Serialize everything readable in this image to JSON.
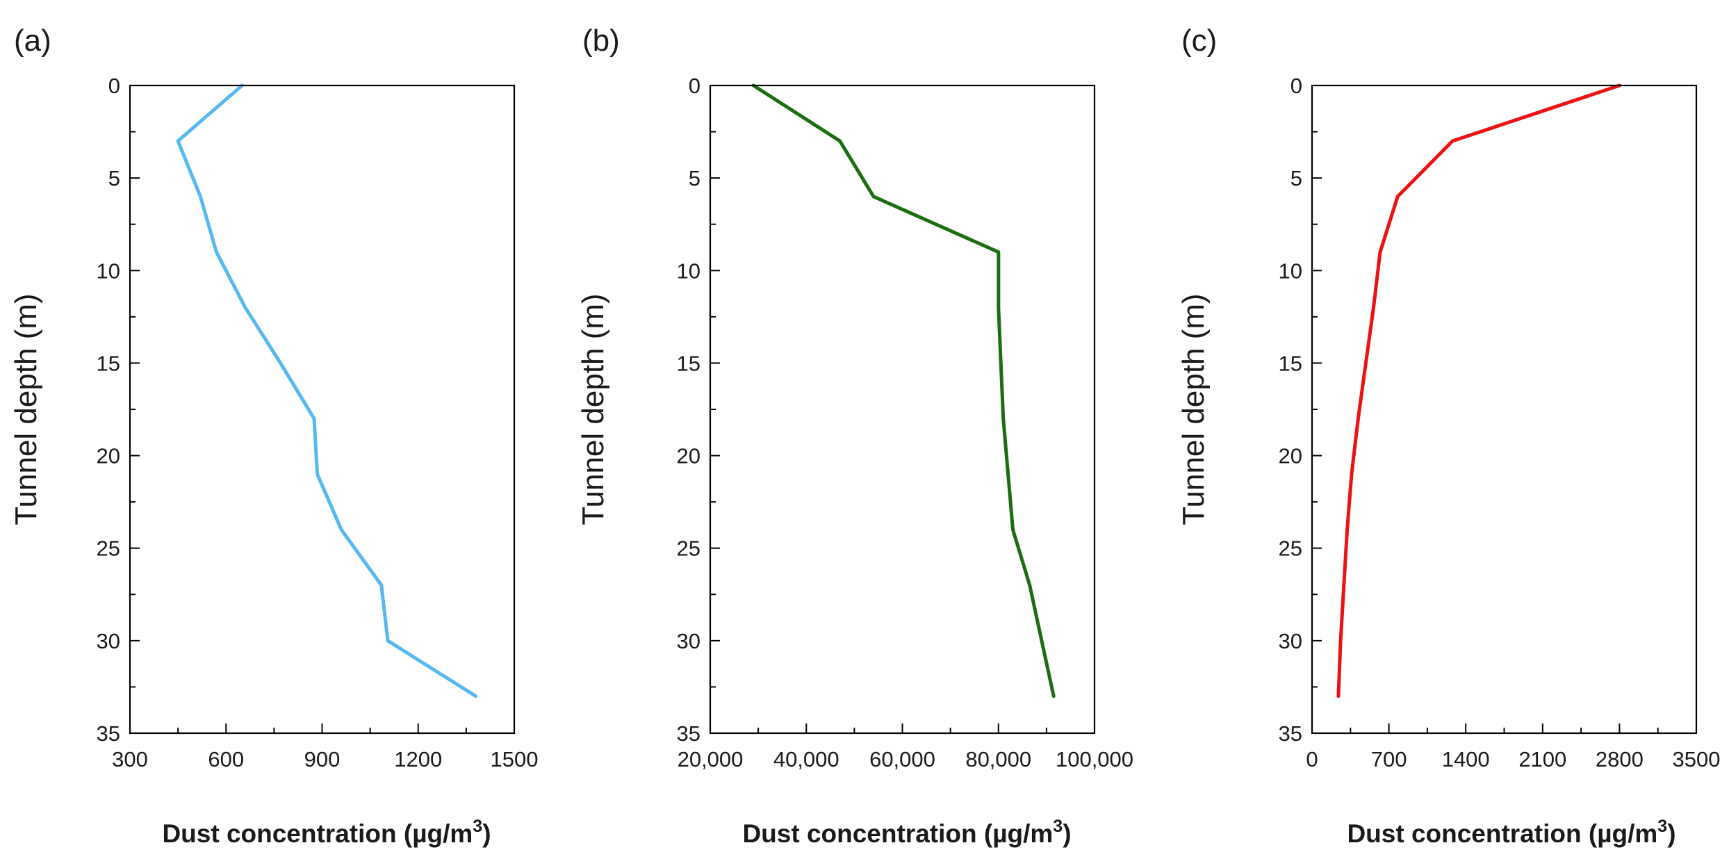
{
  "figure": {
    "background": "#ffffff",
    "axis_color": "#000000"
  },
  "chart_data": [
    {
      "type": "line",
      "panel_label": "(a)",
      "title": "",
      "xlabel_text": "Dust concentration (µg/m",
      "xlabel_sup": "3",
      "xlabel_close": ")",
      "ylabel": "Tunnel depth (m)",
      "xlim": [
        300,
        1500
      ],
      "ylim": [
        35,
        0
      ],
      "y_inverted": true,
      "x_ticks": [
        300,
        600,
        900,
        1200,
        1500
      ],
      "x_tick_labels": [
        "300",
        "600",
        "900",
        "1200",
        "1500"
      ],
      "y_ticks": [
        0,
        5,
        10,
        15,
        20,
        25,
        30,
        35
      ],
      "y_tick_labels": [
        "0",
        "5",
        "10",
        "15",
        "20",
        "25",
        "30",
        "35"
      ],
      "grid": false,
      "series": [
        {
          "name": "Dust concentration",
          "color": "#56b8ee",
          "x": [
            650,
            450,
            520,
            570,
            660,
            770,
            875,
            885,
            960,
            1085,
            1105,
            1380
          ],
          "y": [
            0,
            3,
            6,
            9,
            12,
            15,
            18,
            21,
            24,
            27,
            30,
            33
          ]
        }
      ]
    },
    {
      "type": "line",
      "panel_label": "(b)",
      "title": "",
      "xlabel_text": "Dust concentration (µg/m",
      "xlabel_sup": "3",
      "xlabel_close": ")",
      "ylabel": "Tunnel depth (m)",
      "xlim": [
        20000,
        100000
      ],
      "ylim": [
        35,
        0
      ],
      "y_inverted": true,
      "x_ticks": [
        20000,
        40000,
        60000,
        80000,
        100000
      ],
      "x_tick_labels": [
        "20,000",
        "40,000",
        "60,000",
        "80,000",
        "100,000"
      ],
      "y_ticks": [
        0,
        5,
        10,
        15,
        20,
        25,
        30,
        35
      ],
      "y_tick_labels": [
        "0",
        "5",
        "10",
        "15",
        "20",
        "25",
        "30",
        "35"
      ],
      "grid": false,
      "series": [
        {
          "name": "Dust concentration",
          "color": "#1a6e10",
          "x": [
            29000,
            47000,
            54000,
            80000,
            80000,
            80500,
            81000,
            82000,
            83000,
            86500,
            91500
          ],
          "y": [
            0,
            3,
            6,
            9,
            12,
            15,
            18,
            21,
            24,
            27,
            33
          ]
        }
      ]
    },
    {
      "type": "line",
      "panel_label": "(c)",
      "title": "",
      "xlabel_text": "Dust concentration (µg/m",
      "xlabel_sup": "3",
      "xlabel_close": ")",
      "ylabel": "Tunnel depth (m)",
      "xlim": [
        0,
        3500
      ],
      "ylim": [
        35,
        0
      ],
      "y_inverted": true,
      "x_ticks": [
        0,
        700,
        1400,
        2100,
        2800,
        3500
      ],
      "x_tick_labels": [
        "0",
        "700",
        "1400",
        "2100",
        "2800",
        "3500"
      ],
      "y_ticks": [
        0,
        5,
        10,
        15,
        20,
        25,
        30,
        35
      ],
      "y_tick_labels": [
        "0",
        "5",
        "10",
        "15",
        "20",
        "25",
        "30",
        "35"
      ],
      "grid": false,
      "series": [
        {
          "name": "Dust concentration",
          "color": "#ee1111",
          "x": [
            2800,
            1280,
            780,
            620,
            560,
            490,
            420,
            360,
            320,
            290,
            260,
            240
          ],
          "y": [
            0,
            3,
            6,
            9,
            12,
            15,
            18,
            21,
            24,
            27,
            30,
            33
          ]
        }
      ]
    }
  ]
}
